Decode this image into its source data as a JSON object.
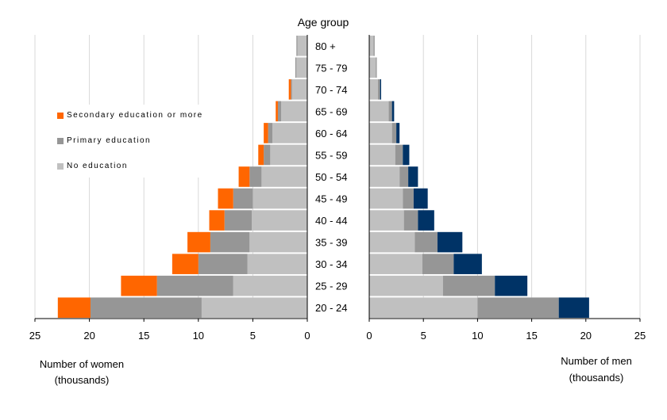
{
  "chart_data": {
    "type": "bar",
    "orientation": "horizontal",
    "layout": "population-pyramid",
    "title": "Age group",
    "categories": [
      "20 - 24",
      "25 - 29",
      "30 - 34",
      "35 - 39",
      "40 - 44",
      "45 - 49",
      "50 - 54",
      "55 - 59",
      "60 - 64",
      "65 - 69",
      "70 - 74",
      "75 - 79",
      "80 +"
    ],
    "panels": {
      "women": {
        "xlabel_line1": "Number of women",
        "xlabel_line2": "(thousands)",
        "xlim": [
          25,
          0
        ],
        "ticks": [
          "25",
          "20",
          "15",
          "10",
          "5",
          "0"
        ],
        "series": [
          {
            "name": "No education",
            "color": "#c0c0c0",
            "values": [
              9.7,
              6.8,
              5.5,
              5.3,
              5.1,
              5.0,
              4.2,
              3.4,
              3.2,
              2.4,
              1.4,
              1.0,
              0.9
            ]
          },
          {
            "name": "Primary education",
            "color": "#969696",
            "values": [
              10.2,
              7.0,
              4.5,
              3.6,
              2.5,
              1.8,
              1.1,
              0.6,
              0.4,
              0.3,
              0.1,
              0.1,
              0.1
            ]
          },
          {
            "name": "Secondary education or more",
            "color": "#ff6600",
            "values": [
              3.0,
              3.3,
              2.4,
              2.1,
              1.4,
              1.4,
              1.0,
              0.5,
              0.4,
              0.2,
              0.2,
              0.0,
              0.0
            ]
          }
        ]
      },
      "men": {
        "xlabel_line1": "Number of men",
        "xlabel_line2": "(thousands)",
        "xlim": [
          0,
          25
        ],
        "ticks": [
          "0",
          "5",
          "10",
          "15",
          "20",
          "25"
        ],
        "series": [
          {
            "name": "No education",
            "color": "#c0c0c0",
            "values": [
              10.0,
              6.8,
              4.9,
              4.2,
              3.2,
              3.1,
              2.8,
              2.4,
              2.1,
              1.8,
              0.8,
              0.6,
              0.4
            ]
          },
          {
            "name": "Primary education",
            "color": "#969696",
            "values": [
              7.5,
              4.8,
              2.9,
              2.1,
              1.3,
              1.0,
              0.8,
              0.7,
              0.4,
              0.3,
              0.2,
              0.1,
              0.1
            ]
          },
          {
            "name": "Secondary education or more",
            "color": "#003366",
            "values": [
              2.8,
              3.0,
              2.6,
              2.3,
              1.5,
              1.3,
              0.9,
              0.6,
              0.3,
              0.2,
              0.1,
              0.0,
              0.0
            ]
          }
        ]
      }
    },
    "legend": {
      "position": "left",
      "items": [
        {
          "label": "Secondary education or more",
          "color": "#ff6600"
        },
        {
          "label": "Primary education",
          "color": "#969696"
        },
        {
          "label": "No education",
          "color": "#c0c0c0"
        }
      ]
    },
    "grid": true,
    "grid_color": "#d9d9d9"
  }
}
